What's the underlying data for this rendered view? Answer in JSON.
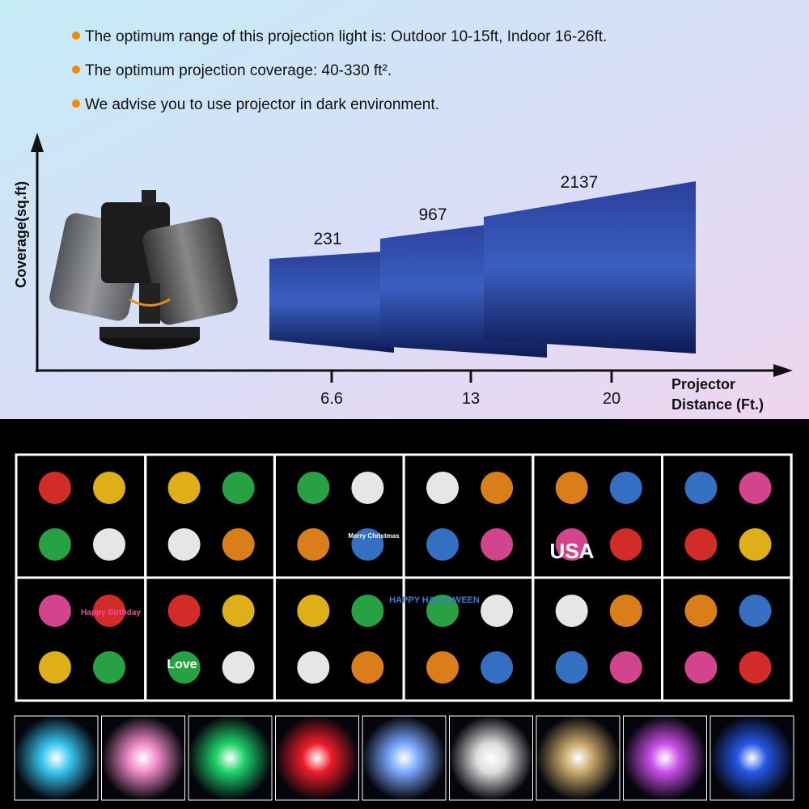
{
  "bullets": [
    "The optimum range of this projection light is: Outdoor 10-15ft, Indoor 16-26ft.",
    "The optimum projection coverage: 40-330 ft².",
    "We advise you to use projector in dark environment."
  ],
  "coverage_diagram": {
    "y_axis_label": "Coverage(sq.ft)",
    "x_axis_label": "Projector Distance (Ft.)",
    "points": [
      {
        "distance": 6.6,
        "coverage": 231
      },
      {
        "distance": 13,
        "coverage": 967
      },
      {
        "distance": 20,
        "coverage": 2137
      }
    ]
  },
  "pattern_texts": {
    "usa": "USA",
    "love": "Love",
    "halloween": "HAPPY HALLOWEEN",
    "birthday": "Happy Birthday",
    "christmas": "Merry Christmas"
  }
}
